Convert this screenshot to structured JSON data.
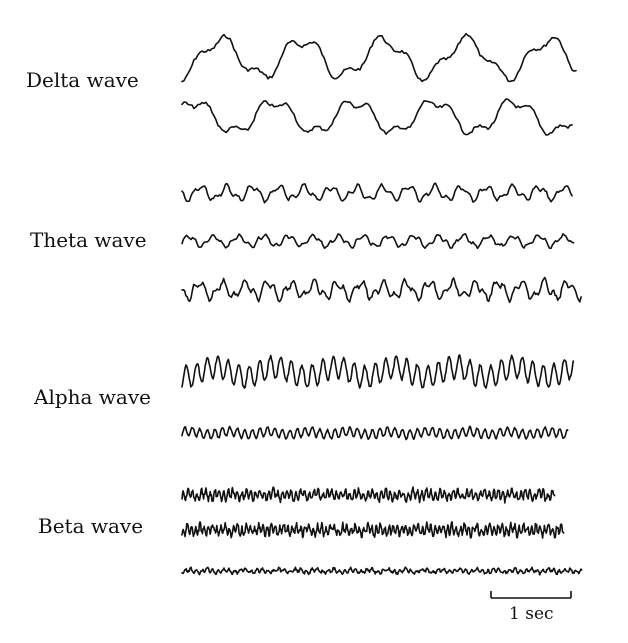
{
  "labels": {
    "delta": "Delta wave",
    "theta": "Theta wave",
    "alpha": "Alpha wave",
    "beta": "Beta wave"
  },
  "scale_bar": {
    "label": "1 sec"
  },
  "colors": {
    "trace": "#111111",
    "background": "#ffffff"
  }
}
